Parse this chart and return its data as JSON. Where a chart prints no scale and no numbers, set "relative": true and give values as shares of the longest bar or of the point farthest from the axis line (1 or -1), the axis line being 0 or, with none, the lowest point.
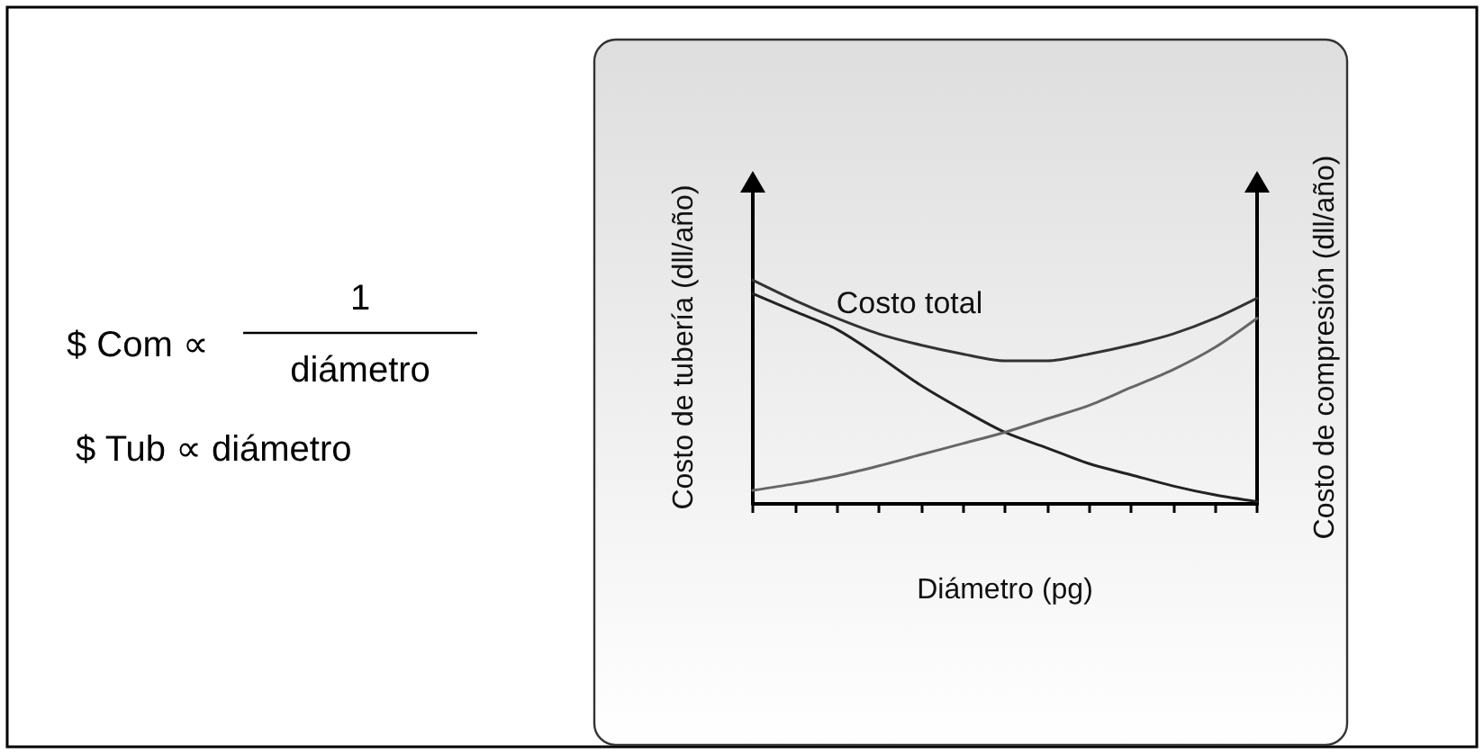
{
  "chart_data": {
    "type": "line",
    "relative": true,
    "xlabel": "Diámetro (pg)",
    "ylabel": "Costo de tubería (dll/año)",
    "y2label": "Costo de compresión (dll/año)",
    "categories": [
      null,
      null,
      null,
      null,
      null,
      null,
      null,
      null,
      null,
      null,
      null,
      null,
      null
    ],
    "series": [
      {
        "color": "#222222",
        "values": [
          0.94,
          0.86,
          0.78,
          0.66,
          0.53,
          0.42,
          0.32,
          0.25,
          0.18,
          0.13,
          0.08,
          0.04,
          0.01
        ]
      },
      {
        "color": "#666666",
        "values": [
          0.06,
          0.09,
          0.125,
          0.17,
          0.22,
          0.27,
          0.32,
          0.38,
          0.44,
          0.52,
          0.6,
          0.7,
          0.83
        ]
      },
      {
        "name": "Costo total",
        "color": "#333333",
        "values": [
          1.0,
          0.91,
          0.83,
          0.76,
          0.71,
          0.67,
          0.64,
          0.64,
          0.67,
          0.71,
          0.76,
          0.83,
          0.92
        ]
      }
    ],
    "annotations": [
      "$ Com ∝",
      "1",
      "diámetro",
      "$ Tub ∝ diámetro"
    ],
    "grid": false,
    "legend": false,
    "marker": "none",
    "line_style": "solid"
  }
}
